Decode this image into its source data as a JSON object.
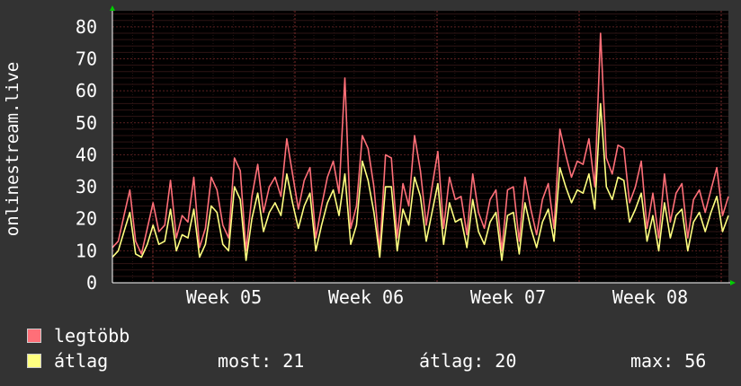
{
  "chart_data": {
    "type": "line",
    "ylabel": "onlinestream.live",
    "ylim": [
      0,
      85
    ],
    "y_ticks": [
      "0",
      "10",
      "20",
      "30",
      "40",
      "50",
      "60",
      "70",
      "80"
    ],
    "x_ticks": [
      "Week 05",
      "Week 06",
      "Week 07",
      "Week 08"
    ],
    "grid": true,
    "background_color": "#000000",
    "grid_color": "#5a2020",
    "series": [
      {
        "name": "legtöbb",
        "color": "#ff6f78",
        "values": [
          11,
          13,
          21,
          29,
          13,
          9,
          17,
          25,
          16,
          18,
          32,
          14,
          21,
          19,
          33,
          11,
          17,
          33,
          29,
          18,
          14,
          39,
          35,
          10,
          27,
          37,
          22,
          30,
          33,
          27,
          45,
          34,
          23,
          32,
          36,
          14,
          24,
          33,
          38,
          28,
          64,
          17,
          24,
          46,
          42,
          30,
          10,
          40,
          39,
          14,
          31,
          24,
          46,
          35,
          18,
          30,
          41,
          17,
          33,
          26,
          27,
          15,
          34,
          22,
          17,
          26,
          29,
          10,
          29,
          30,
          13,
          33,
          23,
          15,
          26,
          31,
          17,
          48,
          40,
          33,
          38,
          37,
          45,
          30,
          78,
          39,
          34,
          43,
          42,
          25,
          30,
          38,
          17,
          28,
          14,
          34,
          19,
          28,
          31,
          14,
          26,
          29,
          22,
          29,
          36,
          21,
          27
        ]
      },
      {
        "name": "átlag",
        "color": "#ffff80",
        "values": [
          8,
          10,
          16,
          22,
          9,
          8,
          12,
          18,
          12,
          13,
          23,
          10,
          15,
          14,
          23,
          8,
          12,
          24,
          22,
          12,
          10,
          30,
          26,
          7,
          20,
          28,
          16,
          22,
          25,
          21,
          34,
          25,
          17,
          24,
          28,
          10,
          18,
          25,
          29,
          21,
          34,
          12,
          18,
          38,
          32,
          22,
          8,
          30,
          30,
          10,
          23,
          18,
          33,
          27,
          13,
          22,
          31,
          12,
          25,
          19,
          20,
          11,
          26,
          16,
          12,
          19,
          22,
          7,
          21,
          22,
          9,
          25,
          17,
          11,
          19,
          23,
          13,
          36,
          30,
          25,
          29,
          28,
          34,
          23,
          56,
          30,
          26,
          33,
          32,
          19,
          23,
          28,
          13,
          21,
          10,
          25,
          14,
          21,
          23,
          10,
          19,
          22,
          16,
          22,
          27,
          16,
          21
        ]
      }
    ]
  },
  "legend": [
    {
      "label": "legtöbb",
      "color": "#ff6f78"
    },
    {
      "label": "átlag",
      "color": "#ffff80"
    }
  ],
  "stats": {
    "most": "most: 21",
    "atlag": "átlag: 20",
    "max": "max: 56"
  }
}
